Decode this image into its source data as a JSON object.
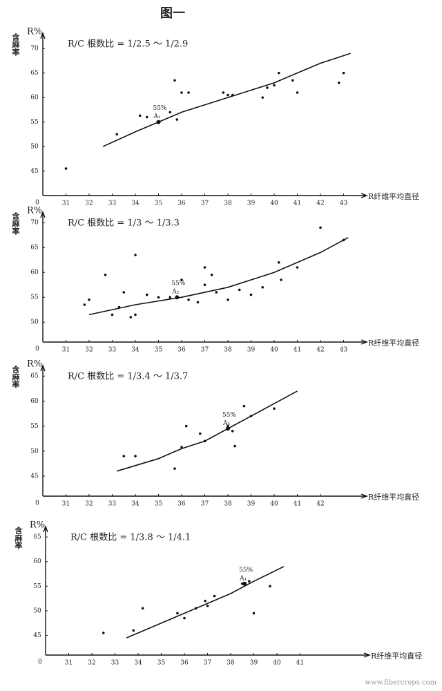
{
  "title": "图一",
  "watermark": "www.fibercrops.com",
  "chart_data": [
    {
      "type": "scatter",
      "y_label": "R%",
      "y_title": "含麻率",
      "x_label": "R纤维平均直径",
      "origin_label": "0",
      "annotation": "R/C 根数比 = 1/2.5 ～ 1/2.9",
      "xlim": [
        30,
        44
      ],
      "ylim": [
        40,
        72
      ],
      "xticks": [
        31,
        32,
        33,
        34,
        35,
        36,
        37,
        38,
        39,
        40,
        41,
        42,
        43
      ],
      "yticks": [
        45,
        50,
        55,
        60,
        65,
        70
      ],
      "color": "#111",
      "x": [
        31,
        33.2,
        34.2,
        34.5,
        35.5,
        35.8,
        35.7,
        36,
        36.3,
        37.8,
        38,
        38.2,
        39.5,
        39.7,
        40,
        40.2,
        40.8,
        41,
        42.8,
        43
      ],
      "values": [
        45.5,
        52.5,
        56.3,
        56,
        57,
        55.5,
        63.5,
        61,
        61,
        61,
        60.5,
        60.5,
        60,
        62,
        62.5,
        65,
        63.5,
        61,
        63,
        65
      ],
      "fit_x": [
        32.6,
        34,
        35,
        36,
        37,
        38,
        39,
        40,
        41,
        42,
        43.3
      ],
      "fit_values": [
        50,
        53,
        55,
        57,
        58.5,
        60,
        61.5,
        63,
        65,
        67,
        69
      ],
      "marker": {
        "x": 35,
        "y": 55,
        "label": "55%",
        "name": "A₁"
      }
    },
    {
      "type": "scatter",
      "y_label": "R%",
      "y_title": "含麻率",
      "x_label": "R纤维平均直径",
      "origin_label": "0",
      "annotation": "R/C 根数比 = 1/3 ～ 1/3.3",
      "xlim": [
        30,
        44
      ],
      "ylim": [
        46,
        71
      ],
      "xticks": [
        31,
        32,
        33,
        34,
        35,
        36,
        37,
        38,
        39,
        40,
        41,
        42,
        43
      ],
      "yticks": [
        50,
        55,
        60,
        65,
        70
      ],
      "color": "#111",
      "x": [
        31.8,
        32,
        32.7,
        33,
        33.3,
        33.5,
        33.8,
        34,
        34,
        34.5,
        35,
        35.5,
        36,
        36.3,
        36.7,
        37,
        37,
        37.3,
        37.5,
        38,
        38.5,
        39,
        39.5,
        40.2,
        40.3,
        41,
        42,
        43
      ],
      "values": [
        53.5,
        54.5,
        59.5,
        51.5,
        53,
        56,
        51,
        51.5,
        63.5,
        55.5,
        55,
        55,
        58.5,
        54.5,
        54,
        61,
        57.5,
        59.5,
        56,
        54.5,
        56.5,
        55.5,
        57,
        62,
        58.5,
        61,
        69,
        66.5
      ],
      "fit_x": [
        32,
        34,
        36,
        38,
        40,
        42,
        43.2
      ],
      "fit_values": [
        51.5,
        53.5,
        55,
        57,
        60,
        64,
        67
      ],
      "marker": {
        "x": 35.8,
        "y": 55,
        "label": "55%",
        "name": "A₂"
      }
    },
    {
      "type": "scatter",
      "y_label": "R%",
      "y_title": "含麻率",
      "x_label": "R纤维平均直径",
      "origin_label": "0",
      "annotation": "R/C 根数比 = 1/3.4 ～ 1/3.7",
      "xlim": [
        30,
        44
      ],
      "ylim": [
        41,
        66
      ],
      "xticks": [
        31,
        32,
        33,
        34,
        35,
        36,
        37,
        38,
        39,
        40,
        41,
        42
      ],
      "yticks": [
        45,
        50,
        55,
        60,
        65
      ],
      "color": "#111",
      "x": [
        33.5,
        34,
        35.7,
        36,
        36.2,
        36.8,
        37,
        38,
        38.2,
        38.3,
        38.7,
        39,
        40
      ],
      "values": [
        49,
        49,
        46.5,
        50.8,
        55,
        53.5,
        52,
        55,
        54,
        51,
        59,
        57,
        58.5
      ],
      "fit_x": [
        33.2,
        35,
        36,
        37,
        38,
        39,
        40,
        41
      ],
      "fit_values": [
        46,
        48.5,
        50.5,
        52,
        54.5,
        57,
        59.5,
        62
      ],
      "marker": {
        "x": 38,
        "y": 54.5,
        "label": "55%",
        "name": "A₃"
      }
    },
    {
      "type": "scatter",
      "y_label": "R%",
      "y_title": "含麻率",
      "x_label": "R纤维平均直径",
      "origin_label": "0",
      "annotation": "R/C 根数比 = 1/3.8 ～ 1/4.1",
      "xlim": [
        30,
        44
      ],
      "ylim": [
        41,
        66
      ],
      "xticks": [
        31,
        32,
        33,
        34,
        35,
        36,
        37,
        38,
        39,
        40,
        41
      ],
      "yticks": [
        45,
        50,
        55,
        60,
        65
      ],
      "color": "#111",
      "x": [
        32.5,
        33.8,
        34.2,
        35.7,
        36,
        36.5,
        36.9,
        37,
        37.3,
        38.5,
        38.8,
        39,
        39.7
      ],
      "values": [
        45.5,
        46,
        50.5,
        49.5,
        48.5,
        50.5,
        52,
        51,
        53,
        55.5,
        56,
        49.5,
        55
      ],
      "fit_x": [
        33.5,
        35,
        36,
        37,
        38,
        39,
        40.3
      ],
      "fit_values": [
        44.5,
        47.5,
        49.5,
        51.5,
        53.5,
        56,
        59
      ],
      "marker": {
        "x": 38.6,
        "y": 55.5,
        "label": "55%",
        "name": "A₄"
      }
    }
  ]
}
